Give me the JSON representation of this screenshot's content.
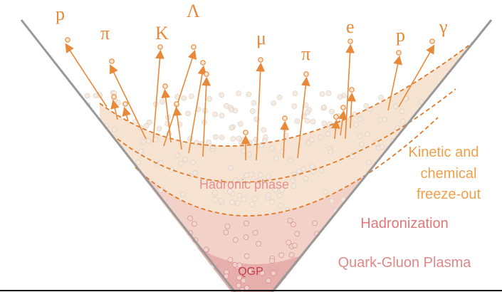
{
  "particles": [
    "p",
    "π",
    "K",
    "Λ",
    "μ",
    "π",
    "e",
    "p",
    "γ"
  ],
  "stages": {
    "freeze_out": [
      "Kinetic and",
      "chemical",
      "freeze-out"
    ],
    "hadronization": "Hadronization",
    "qgp_stage": "Quark-Gluon Plasma"
  },
  "regions": {
    "hadronic": "Hadronic phase",
    "qgp": "QGP"
  }
}
